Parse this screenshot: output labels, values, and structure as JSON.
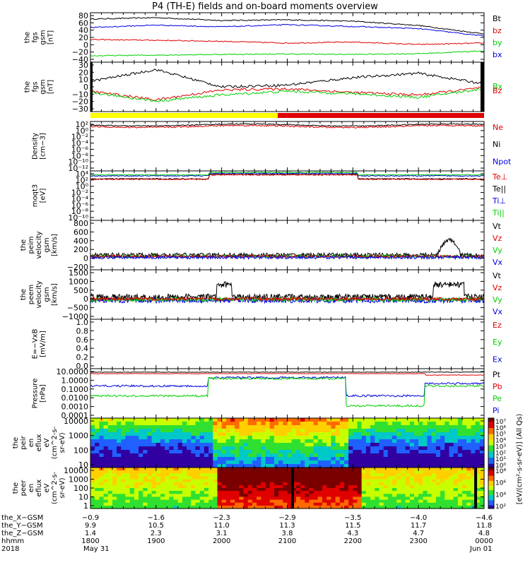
{
  "title": "P4 (TH-E) fields and on-board moments overview",
  "colors": {
    "black": "#000000",
    "red": "#e00000",
    "green": "#00d000",
    "blue": "#0000e0",
    "yellow": "#ffff00"
  },
  "chart_data": [
    {
      "type": "line",
      "panel_label": [
        "the",
        "fgs",
        "gsm",
        "[nT]"
      ],
      "ylim": [
        -50,
        90
      ],
      "yticks": [
        "80",
        "60",
        "40",
        "20",
        "0",
        "−20",
        "−40"
      ],
      "legend": [
        {
          "label": "Bt",
          "color": "black"
        },
        {
          "label": "bz",
          "color": "red"
        },
        {
          "label": "by",
          "color": "green"
        },
        {
          "label": "bx",
          "color": "blue"
        }
      ],
      "x": [
        -0.9,
        -1.6,
        -2.3,
        -2.9,
        -3.5,
        -4.0,
        -4.6
      ],
      "series": [
        {
          "name": "Bt",
          "values": [
            72,
            76,
            68,
            70,
            66,
            54,
            30
          ]
        },
        {
          "name": "bz",
          "values": [
            14,
            12,
            9,
            4,
            7,
            0,
            4
          ]
        },
        {
          "name": "by",
          "values": [
            -32,
            -30,
            -28,
            -27,
            -28,
            -26,
            -18
          ]
        },
        {
          "name": "bx",
          "values": [
            48,
            55,
            50,
            56,
            51,
            45,
            24
          ]
        }
      ]
    },
    {
      "type": "line",
      "panel_label": [
        "the",
        "fgs",
        "gsm",
        "[nT]"
      ],
      "ylim": [
        -35,
        45
      ],
      "yticks": [
        "30",
        "20",
        "10",
        "0",
        "−10",
        "−20",
        "−30"
      ],
      "legend": [
        {
          "label": "Bx",
          "color": "green"
        },
        {
          "label": "Bz",
          "color": "red"
        }
      ],
      "x": [
        -0.9,
        -1.6,
        -2.3,
        -2.9,
        -3.5,
        -4.0,
        -4.6
      ],
      "series": [
        {
          "name": "Bt",
          "values": [
            14,
            33,
            5,
            8,
            20,
            27,
            10
          ]
        },
        {
          "name": "Bz",
          "values": [
            -2,
            -16,
            0,
            2,
            -4,
            -8,
            4
          ]
        },
        {
          "name": "Bx",
          "values": [
            -4,
            -18,
            -8,
            -2,
            -6,
            -12,
            2
          ]
        }
      ]
    },
    {
      "type": "line",
      "panel_label": [
        "Density",
        "[cm−3]"
      ],
      "yscale": "log",
      "yticks": [
        "10²",
        "10⁰",
        "10⁻²",
        "10⁻⁴",
        "10⁻⁶",
        "10⁻⁸",
        "10⁻¹⁰",
        "10⁻¹²"
      ],
      "legend": [
        {
          "label": "Ne",
          "color": "red"
        },
        {
          "label": "Ni",
          "color": "black"
        },
        {
          "label": "Npot",
          "color": "blue"
        }
      ]
    },
    {
      "type": "line",
      "panel_label": [
        "moqt3",
        "[eV]"
      ],
      "yscale": "log",
      "yticks": [
        "10⁴",
        "10²",
        "10⁰",
        "10⁻²",
        "10⁻⁴",
        "10⁻⁶",
        "10⁻⁸",
        "10⁻¹⁰"
      ],
      "legend": [
        {
          "label": "Te⊥",
          "color": "red"
        },
        {
          "label": "Te||",
          "color": "black"
        },
        {
          "label": "Ti⊥",
          "color": "blue"
        },
        {
          "label": "Ti||",
          "color": "green"
        }
      ]
    },
    {
      "type": "line",
      "panel_label": [
        "the",
        "peim",
        "velocity",
        "gsm",
        "[km/s]"
      ],
      "ylim": [
        -300,
        800
      ],
      "yticks": [
        "800",
        "600",
        "400",
        "200",
        "0",
        "−200"
      ],
      "legend": [
        {
          "label": "Vt",
          "color": "black"
        },
        {
          "label": "Vz",
          "color": "red"
        },
        {
          "label": "Vy",
          "color": "green"
        },
        {
          "label": "Vx",
          "color": "blue"
        }
      ]
    },
    {
      "type": "line",
      "panel_label": [
        "the",
        "peem",
        "velocity",
        "gsm",
        "[km/s]"
      ],
      "ylim": [
        -1100,
        1600
      ],
      "yticks": [
        "1500",
        "1000",
        "500",
        "0",
        "−500",
        "−1000"
      ],
      "legend": [
        {
          "label": "Vt",
          "color": "black"
        },
        {
          "label": "Vz",
          "color": "red"
        },
        {
          "label": "Vy",
          "color": "green"
        },
        {
          "label": "Vx",
          "color": "blue"
        }
      ]
    },
    {
      "type": "line",
      "panel_label": [
        "E=−VxB",
        "[mV/m]"
      ],
      "ylim": [
        0.0,
        1.0
      ],
      "yticks": [
        "1.0",
        "0.8",
        "0.6",
        "0.4",
        "0.2",
        "0.0"
      ],
      "legend": [
        {
          "label": "Ez",
          "color": "red"
        },
        {
          "label": "Ey",
          "color": "green"
        },
        {
          "label": "Ex",
          "color": "blue"
        }
      ]
    },
    {
      "type": "line",
      "panel_label": [
        "Pressure",
        "[nPa]"
      ],
      "yscale": "log",
      "yticks": [
        "10.0000",
        "1.0000",
        "0.1000",
        "0.0100",
        "0.0010",
        "0.0001"
      ],
      "legend": [
        {
          "label": "Pt",
          "color": "black"
        },
        {
          "label": "Pb",
          "color": "red"
        },
        {
          "label": "Pe",
          "color": "green"
        },
        {
          "label": "Pi",
          "color": "blue"
        }
      ]
    },
    {
      "type": "heatmap",
      "panel_label": [
        "the",
        "peir",
        "en",
        "eflux",
        "eV",
        "(cm^2-s-",
        "sr-eV)"
      ],
      "yticks": [
        "10000",
        "1000",
        "100",
        "10"
      ],
      "colorbar_ticks": [
        "10⁷",
        "10⁶",
        "10⁵",
        "10⁴",
        "10³",
        "10²",
        "10¹",
        "10⁰"
      ]
    },
    {
      "type": "heatmap",
      "panel_label": [
        "the",
        "peer",
        "en",
        "eflux",
        "eV",
        "(cm^2-s-",
        "sr-eV)"
      ],
      "yticks": [
        "10000",
        "1000",
        "100",
        "10",
        "1"
      ],
      "colorbar_ticks": [
        "10⁸",
        "10⁶",
        "10⁴",
        "10²"
      ]
    }
  ],
  "colorbar_label": "[eV/(cm²-s-sr-eV)] (All Qs)",
  "ephemeris": {
    "rows": [
      {
        "label": "the_X−GSM",
        "values": [
          "−0.9",
          "−1.6",
          "−2.3",
          "−2.9",
          "−3.5",
          "−4.0",
          "−4.6"
        ]
      },
      {
        "label": "the_Y−GSM",
        "values": [
          "9.9",
          "10.5",
          "11.0",
          "11.3",
          "11.5",
          "11.7",
          "11.8"
        ]
      },
      {
        "label": "the_Z−GSM",
        "values": [
          "1.4",
          "2.3",
          "3.1",
          "3.8",
          "4.3",
          "4.7",
          "4.8"
        ]
      },
      {
        "label": "hhmm",
        "values": [
          "1800",
          "1900",
          "2000",
          "2100",
          "2200",
          "2300",
          "0000"
        ]
      }
    ],
    "year": "2018",
    "date_start": "May 31",
    "date_end": "Jun 01"
  }
}
